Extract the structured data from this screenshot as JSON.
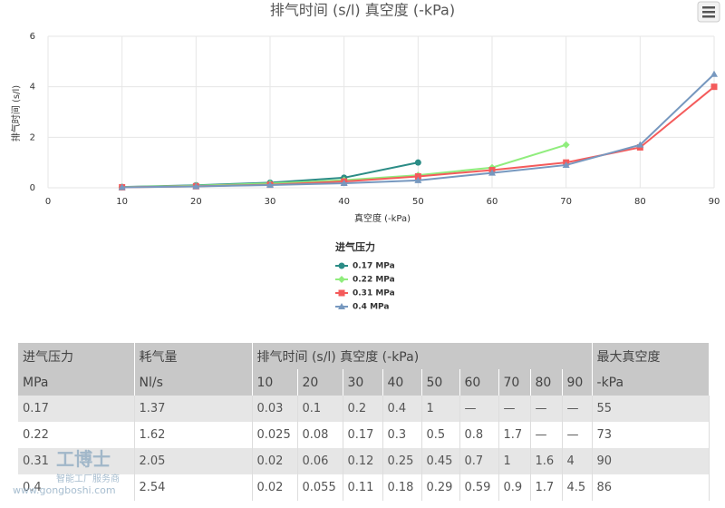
{
  "chart_data": {
    "type": "line",
    "title": "排气时间 (s/l) 真空度 (-kPa)",
    "x_label": "真空度 (-kPa)",
    "y_label": "排气时间 (s/l)",
    "x": [
      10,
      20,
      30,
      40,
      50,
      60,
      70,
      80,
      90
    ],
    "xlim": [
      0,
      90
    ],
    "xticks": [
      0,
      10,
      20,
      30,
      40,
      50,
      60,
      70,
      80,
      90
    ],
    "ylim": [
      0,
      6
    ],
    "yticks": [
      0,
      2,
      4,
      6
    ],
    "grid": true,
    "legend_title": "进气压力",
    "series": [
      {
        "name": "0.17 MPa",
        "color": "#2b8c86",
        "marker": "circle",
        "values": [
          0.03,
          0.1,
          0.2,
          0.4,
          1,
          null,
          null,
          null,
          null
        ]
      },
      {
        "name": "0.22 MPa",
        "color": "#90ed7d",
        "marker": "diamond",
        "values": [
          0.025,
          0.08,
          0.17,
          0.3,
          0.5,
          0.8,
          1.7,
          null,
          null
        ]
      },
      {
        "name": "0.31 MPa",
        "color": "#f45b5b",
        "marker": "square",
        "values": [
          0.02,
          0.06,
          0.12,
          0.25,
          0.45,
          0.7,
          1,
          1.6,
          4
        ]
      },
      {
        "name": "0.4 MPa",
        "color": "#7798bf",
        "marker": "triangle",
        "values": [
          0.02,
          0.055,
          0.11,
          0.18,
          0.29,
          0.59,
          0.9,
          1.7,
          4.5
        ]
      }
    ]
  },
  "table": {
    "header": [
      "进气压力",
      "耗气量",
      "排气时间 (s/l) 真空度 (-kPa)",
      "最大真空度"
    ],
    "units": [
      "MPa",
      "Nl/s",
      "10",
      "20",
      "30",
      "40",
      "50",
      "60",
      "70",
      "80",
      "90",
      "-kPa"
    ],
    "rows": [
      [
        "0.17",
        "1.37",
        "0.03",
        "0.1",
        "0.2",
        "0.4",
        "1",
        "—",
        "—",
        "—",
        "—",
        "55"
      ],
      [
        "0.22",
        "1.62",
        "0.025",
        "0.08",
        "0.17",
        "0.3",
        "0.5",
        "0.8",
        "1.7",
        "—",
        "—",
        "73"
      ],
      [
        "0.31",
        "2.05",
        "0.02",
        "0.06",
        "0.12",
        "0.25",
        "0.45",
        "0.7",
        "1",
        "1.6",
        "4",
        "90"
      ],
      [
        "0.4",
        "2.54",
        "0.02",
        "0.055",
        "0.11",
        "0.18",
        "0.29",
        "0.59",
        "0.9",
        "1.7",
        "4.5",
        "86"
      ]
    ]
  },
  "watermark": {
    "brand": "工博士",
    "slogan": "智能工厂服务商",
    "url": "www.gongboshi.com"
  }
}
